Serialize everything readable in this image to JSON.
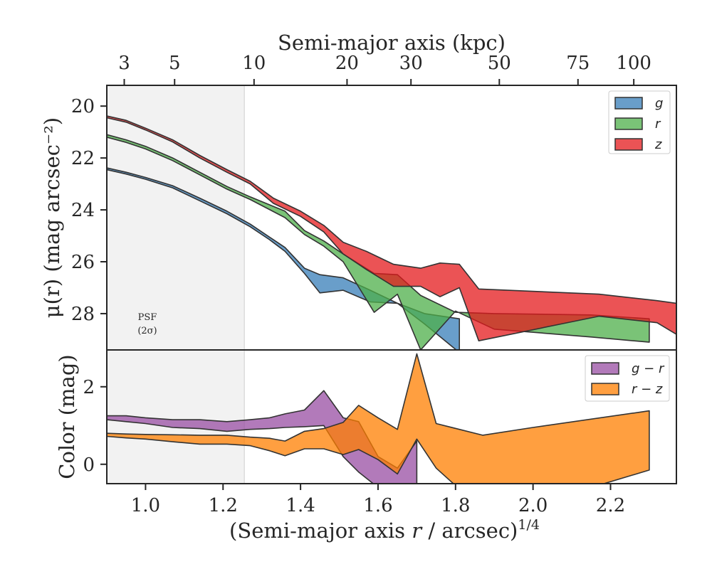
{
  "chart_data": [
    {
      "type": "area",
      "panel": "surface-brightness",
      "ylabel": "μ(r) (mag arcsec⁻²)",
      "top_xlabel": "Semi-major axis (kpc)",
      "xlim": [
        0.9,
        2.37
      ],
      "ylim": [
        29.4,
        19.2
      ],
      "y_inverted": true,
      "yticks": [
        20,
        22,
        24,
        26,
        28
      ],
      "top_ticks": [
        {
          "label": "3",
          "x": 0.945
        },
        {
          "label": "5",
          "x": 1.075
        },
        {
          "label": "10",
          "x": 1.28
        },
        {
          "label": "20",
          "x": 1.52
        },
        {
          "label": "30",
          "x": 1.685
        },
        {
          "label": "50",
          "x": 1.913
        },
        {
          "label": "75",
          "x": 2.116
        },
        {
          "label": "100",
          "x": 2.26
        }
      ],
      "psf_region": {
        "x_max": 1.255,
        "label_line1": "PSF",
        "label_line2": "(2σ)"
      },
      "legend_position": "top-right",
      "series": [
        {
          "name": "g",
          "color": "#377eb8",
          "upper": [
            [
              0.9,
              22.38
            ],
            [
              0.95,
              22.55
            ],
            [
              1.0,
              22.75
            ],
            [
              1.07,
              23.07
            ],
            [
              1.14,
              23.55
            ],
            [
              1.21,
              24.05
            ],
            [
              1.27,
              24.55
            ],
            [
              1.32,
              25.05
            ],
            [
              1.36,
              25.45
            ],
            [
              1.41,
              26.25
            ],
            [
              1.45,
              26.5
            ],
            [
              1.51,
              26.62
            ],
            [
              1.58,
              27.1
            ],
            [
              1.65,
              27.6
            ],
            [
              1.72,
              28.0
            ],
            [
              1.81,
              28.2
            ]
          ],
          "lower": [
            [
              0.9,
              22.45
            ],
            [
              0.95,
              22.62
            ],
            [
              1.0,
              22.82
            ],
            [
              1.07,
              23.15
            ],
            [
              1.14,
              23.65
            ],
            [
              1.21,
              24.15
            ],
            [
              1.27,
              24.65
            ],
            [
              1.32,
              25.15
            ],
            [
              1.36,
              25.6
            ],
            [
              1.41,
              26.45
            ],
            [
              1.45,
              27.2
            ],
            [
              1.51,
              27.1
            ],
            [
              1.58,
              27.55
            ],
            [
              1.65,
              27.6
            ],
            [
              1.72,
              28.4
            ],
            [
              1.81,
              29.5
            ]
          ]
        },
        {
          "name": "r",
          "color": "#4daf4a",
          "upper": [
            [
              0.9,
              21.1
            ],
            [
              0.95,
              21.3
            ],
            [
              1.0,
              21.55
            ],
            [
              1.07,
              22.0
            ],
            [
              1.14,
              22.55
            ],
            [
              1.21,
              23.1
            ],
            [
              1.27,
              23.5
            ],
            [
              1.36,
              24.05
            ],
            [
              1.41,
              24.8
            ],
            [
              1.46,
              25.2
            ],
            [
              1.51,
              25.7
            ],
            [
              1.59,
              26.45
            ],
            [
              1.65,
              26.5
            ],
            [
              1.71,
              27.3
            ],
            [
              1.8,
              27.95
            ],
            [
              1.9,
              28.0
            ],
            [
              2.15,
              28.05
            ],
            [
              2.3,
              28.2
            ]
          ],
          "lower": [
            [
              0.9,
              21.2
            ],
            [
              0.95,
              21.4
            ],
            [
              1.0,
              21.65
            ],
            [
              1.07,
              22.1
            ],
            [
              1.14,
              22.65
            ],
            [
              1.21,
              23.2
            ],
            [
              1.27,
              23.6
            ],
            [
              1.36,
              24.3
            ],
            [
              1.41,
              24.95
            ],
            [
              1.46,
              25.4
            ],
            [
              1.51,
              26.0
            ],
            [
              1.59,
              27.95
            ],
            [
              1.65,
              27.25
            ],
            [
              1.71,
              29.4
            ],
            [
              1.8,
              27.9
            ],
            [
              1.9,
              28.6
            ],
            [
              2.15,
              28.9
            ],
            [
              2.3,
              29.1
            ]
          ]
        },
        {
          "name": "z",
          "color": "#e41a1c",
          "upper": [
            [
              0.9,
              20.38
            ],
            [
              0.95,
              20.55
            ],
            [
              1.0,
              20.85
            ],
            [
              1.07,
              21.3
            ],
            [
              1.14,
              21.9
            ],
            [
              1.21,
              22.45
            ],
            [
              1.27,
              22.9
            ],
            [
              1.33,
              23.55
            ],
            [
              1.4,
              24.05
            ],
            [
              1.46,
              24.6
            ],
            [
              1.51,
              25.25
            ],
            [
              1.57,
              25.6
            ],
            [
              1.64,
              26.1
            ],
            [
              1.71,
              26.25
            ],
            [
              1.76,
              26.05
            ],
            [
              1.81,
              26.1
            ],
            [
              1.86,
              27.05
            ],
            [
              2.17,
              27.25
            ],
            [
              2.32,
              27.5
            ],
            [
              2.37,
              27.6
            ]
          ],
          "lower": [
            [
              0.9,
              20.45
            ],
            [
              0.95,
              20.62
            ],
            [
              1.0,
              20.92
            ],
            [
              1.07,
              21.38
            ],
            [
              1.14,
              22.0
            ],
            [
              1.21,
              22.55
            ],
            [
              1.27,
              23.0
            ],
            [
              1.33,
              23.75
            ],
            [
              1.4,
              24.25
            ],
            [
              1.46,
              24.85
            ],
            [
              1.51,
              25.7
            ],
            [
              1.57,
              26.3
            ],
            [
              1.64,
              26.95
            ],
            [
              1.71,
              26.95
            ],
            [
              1.76,
              27.35
            ],
            [
              1.81,
              27.0
            ],
            [
              1.86,
              29.05
            ],
            [
              2.17,
              28.1
            ],
            [
              2.32,
              28.35
            ],
            [
              2.37,
              28.8
            ]
          ]
        }
      ]
    },
    {
      "type": "area",
      "panel": "color",
      "xlabel": "(Semi-major axis r / arcsec)^1/4",
      "ylabel": "Color (mag)",
      "xlim": [
        0.9,
        2.37
      ],
      "ylim": [
        -0.5,
        2.95
      ],
      "yticks": [
        0,
        2
      ],
      "xticks": [
        1.0,
        1.2,
        1.4,
        1.6,
        1.8,
        2.0,
        2.2
      ],
      "xtick_labels": [
        "1.0",
        "1.2",
        "1.4",
        "1.6",
        "1.8",
        "2.0",
        "2.2"
      ],
      "legend_position": "top-right",
      "series": [
        {
          "name": "g − r",
          "color": "#984ea3",
          "upper": [
            [
              0.9,
              1.25
            ],
            [
              0.95,
              1.25
            ],
            [
              1.0,
              1.2
            ],
            [
              1.07,
              1.15
            ],
            [
              1.14,
              1.15
            ],
            [
              1.21,
              1.1
            ],
            [
              1.27,
              1.15
            ],
            [
              1.32,
              1.2
            ],
            [
              1.36,
              1.3
            ],
            [
              1.41,
              1.4
            ],
            [
              1.46,
              1.9
            ],
            [
              1.51,
              1.2
            ],
            [
              1.55,
              1.1
            ],
            [
              1.6,
              0.2
            ],
            [
              1.65,
              -0.1
            ],
            [
              1.7,
              0.6
            ]
          ],
          "lower": [
            [
              0.9,
              1.15
            ],
            [
              0.95,
              1.1
            ],
            [
              1.0,
              1.05
            ],
            [
              1.07,
              0.95
            ],
            [
              1.14,
              0.92
            ],
            [
              1.21,
              0.85
            ],
            [
              1.27,
              0.9
            ],
            [
              1.32,
              0.92
            ],
            [
              1.36,
              0.95
            ],
            [
              1.41,
              0.97
            ],
            [
              1.46,
              1.0
            ],
            [
              1.51,
              0.2
            ],
            [
              1.55,
              -0.2
            ],
            [
              1.6,
              -0.6
            ],
            [
              1.65,
              -0.8
            ],
            [
              1.7,
              -0.6
            ]
          ]
        },
        {
          "name": "r − z",
          "color": "#ff7f00",
          "upper": [
            [
              0.9,
              0.8
            ],
            [
              0.95,
              0.78
            ],
            [
              1.0,
              0.77
            ],
            [
              1.07,
              0.76
            ],
            [
              1.14,
              0.75
            ],
            [
              1.21,
              0.75
            ],
            [
              1.27,
              0.7
            ],
            [
              1.32,
              0.67
            ],
            [
              1.36,
              0.6
            ],
            [
              1.41,
              0.85
            ],
            [
              1.46,
              0.92
            ],
            [
              1.51,
              1.08
            ],
            [
              1.55,
              1.52
            ],
            [
              1.6,
              1.2
            ],
            [
              1.65,
              0.9
            ],
            [
              1.7,
              2.85
            ],
            [
              1.75,
              1.05
            ],
            [
              1.87,
              0.75
            ],
            [
              2.0,
              0.95
            ],
            [
              2.3,
              1.38
            ]
          ],
          "lower": [
            [
              0.9,
              0.72
            ],
            [
              0.95,
              0.68
            ],
            [
              1.0,
              0.65
            ],
            [
              1.07,
              0.58
            ],
            [
              1.14,
              0.52
            ],
            [
              1.21,
              0.52
            ],
            [
              1.27,
              0.48
            ],
            [
              1.32,
              0.35
            ],
            [
              1.36,
              0.22
            ],
            [
              1.41,
              0.4
            ],
            [
              1.46,
              0.4
            ],
            [
              1.51,
              0.25
            ],
            [
              1.55,
              0.38
            ],
            [
              1.6,
              0.12
            ],
            [
              1.65,
              -0.25
            ],
            [
              1.7,
              0.65
            ],
            [
              1.75,
              -0.1
            ],
            [
              1.8,
              -0.55
            ],
            [
              2.15,
              -0.6
            ],
            [
              2.3,
              -0.15
            ]
          ]
        }
      ]
    }
  ]
}
